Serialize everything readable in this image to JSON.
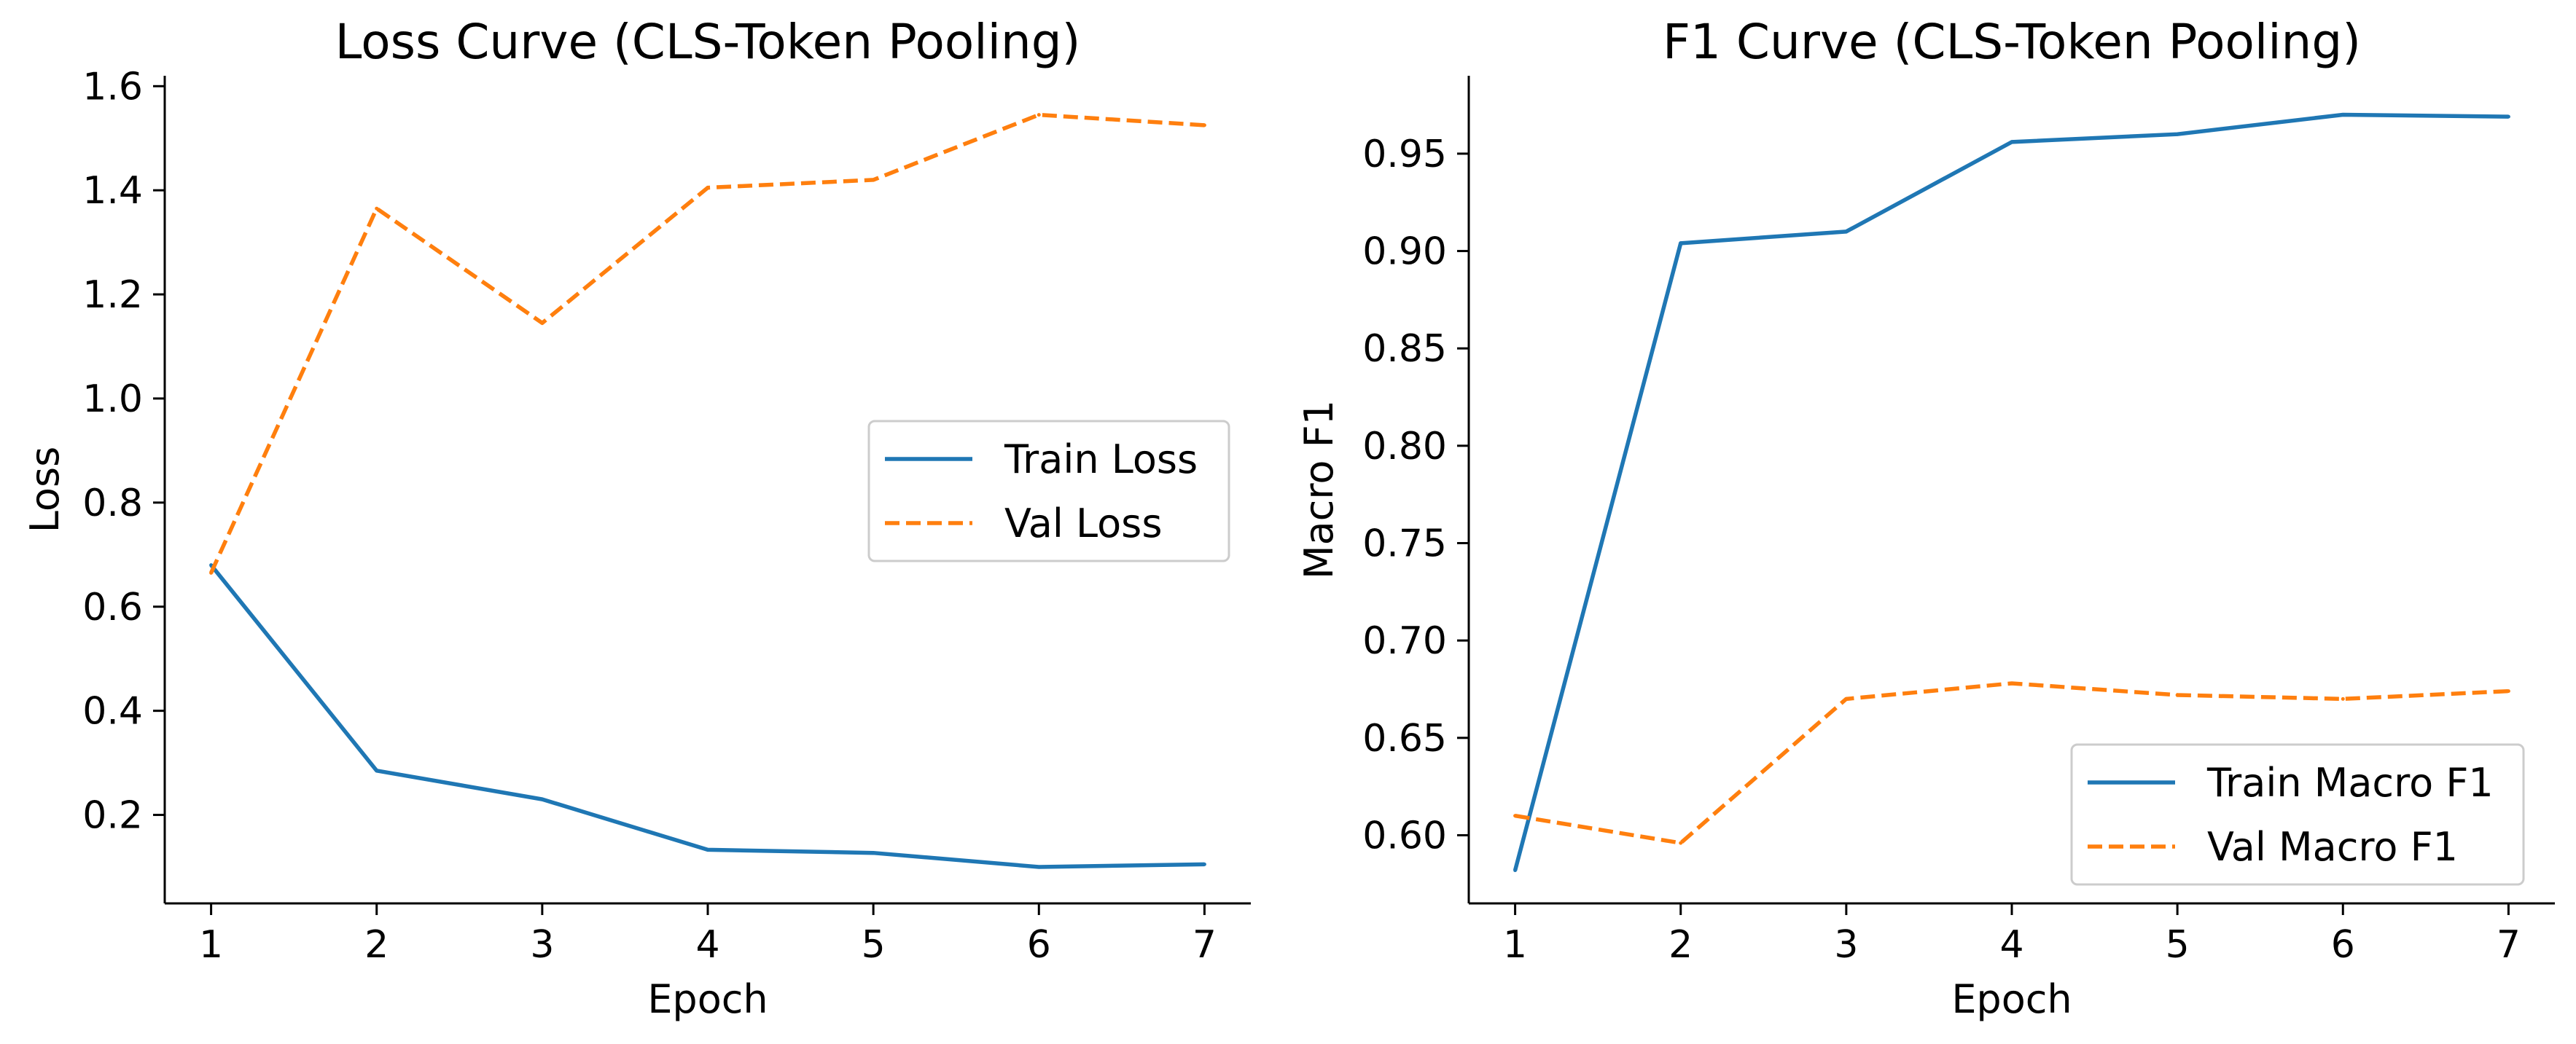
{
  "chart_data": [
    {
      "type": "line",
      "title": "Loss Curve (CLS-Token Pooling)",
      "xlabel": "Epoch",
      "ylabel": "Loss",
      "x": [
        1,
        2,
        3,
        4,
        5,
        6,
        7
      ],
      "xticks": [
        "1",
        "2",
        "3",
        "4",
        "5",
        "6",
        "7"
      ],
      "xlim": [
        0.72,
        7.28
      ],
      "ylim": [
        0.03,
        1.62
      ],
      "yticks": [
        "0.2",
        "0.4",
        "0.6",
        "0.8",
        "1.0",
        "1.2",
        "1.4",
        "1.6"
      ],
      "grid": false,
      "legend": "center-right",
      "series": [
        {
          "name": "Train Loss",
          "values": [
            0.68,
            0.285,
            0.23,
            0.133,
            0.127,
            0.1,
            0.105
          ],
          "color": "#1f77b4",
          "style": "solid"
        },
        {
          "name": "Val Loss",
          "values": [
            0.665,
            1.365,
            1.145,
            1.405,
            1.42,
            1.545,
            1.525
          ],
          "color": "#ff7f0e",
          "style": "dashed"
        }
      ]
    },
    {
      "type": "line",
      "title": "F1 Curve (CLS-Token Pooling)",
      "xlabel": "Epoch",
      "ylabel": "Macro F1",
      "x": [
        1,
        2,
        3,
        4,
        5,
        6,
        7
      ],
      "xticks": [
        "1",
        "2",
        "3",
        "4",
        "5",
        "6",
        "7"
      ],
      "xlim": [
        0.72,
        7.28
      ],
      "ylim": [
        0.565,
        0.99
      ],
      "yticks": [
        "0.60",
        "0.65",
        "0.70",
        "0.75",
        "0.80",
        "0.85",
        "0.90",
        "0.95"
      ],
      "grid": false,
      "legend": "lower-right",
      "series": [
        {
          "name": "Train Macro F1",
          "values": [
            0.582,
            0.904,
            0.91,
            0.956,
            0.96,
            0.97,
            0.969
          ],
          "color": "#1f77b4",
          "style": "solid"
        },
        {
          "name": "Val Macro F1",
          "values": [
            0.61,
            0.596,
            0.67,
            0.678,
            0.672,
            0.67,
            0.674
          ],
          "color": "#ff7f0e",
          "style": "dashed"
        }
      ]
    }
  ]
}
